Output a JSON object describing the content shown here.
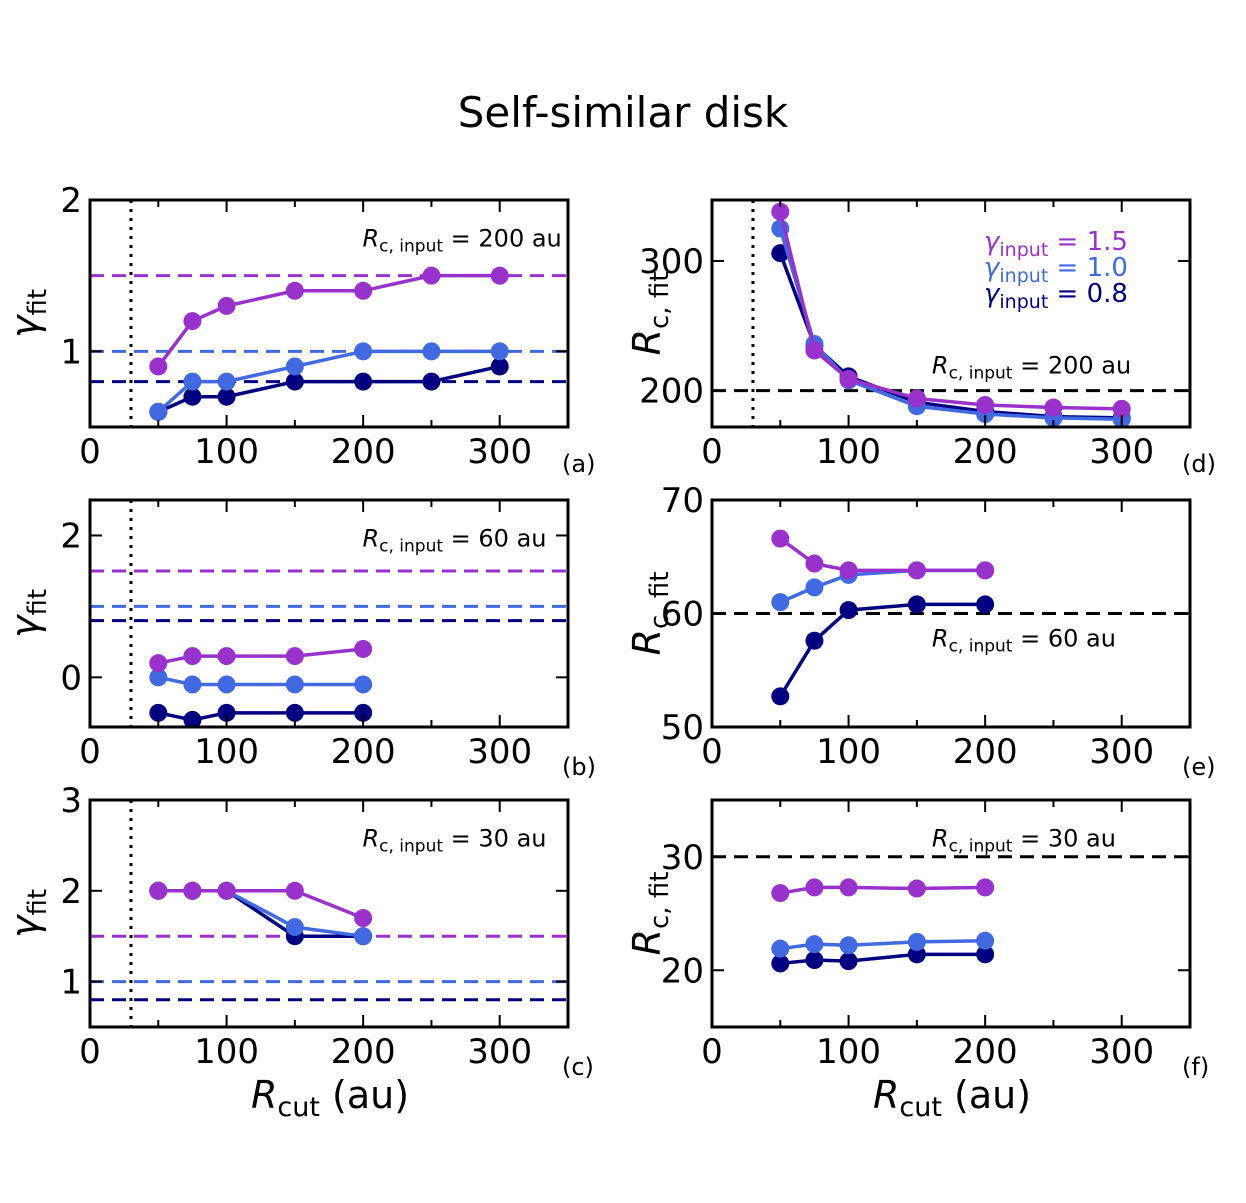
{
  "title": "Self-similar disk",
  "common_xlabel": {
    "main": "R",
    "sub": "cut",
    "unit": " (au)"
  },
  "legend": [
    {
      "gamma": "1.5",
      "color": "#9932CC"
    },
    {
      "gamma": "1.0",
      "color": "#4169E1"
    },
    {
      "gamma": "0.8",
      "color": "#000080"
    }
  ],
  "chart_data": [
    {
      "panel": "(a)",
      "type": "line",
      "xlim": [
        0,
        350
      ],
      "ylim": [
        0.5,
        2.0
      ],
      "xticks": [
        0,
        100,
        200,
        300
      ],
      "yticks": [
        1,
        2
      ],
      "ylabel": "gamma_fit",
      "annotation": {
        "label": "R",
        "sub": "c, input",
        "value": " = 200 au"
      },
      "hlines": [
        {
          "y": 1.5,
          "color": "#9932CC"
        },
        {
          "y": 1.0,
          "color": "#4169E1"
        },
        {
          "y": 0.8,
          "color": "#000080"
        }
      ],
      "vline": 30,
      "series": [
        {
          "name": "gamma_input = 1.5",
          "color": "#9932CC",
          "x": [
            50,
            75,
            100,
            150,
            200,
            250,
            300
          ],
          "y": [
            0.9,
            1.2,
            1.3,
            1.4,
            1.4,
            1.5,
            1.5
          ]
        },
        {
          "name": "gamma_input = 1.0",
          "color": "#4169E1",
          "x": [
            50,
            75,
            100,
            150,
            200,
            250,
            300
          ],
          "y": [
            0.6,
            0.8,
            0.8,
            0.9,
            1.0,
            1.0,
            1.0
          ]
        },
        {
          "name": "gamma_input = 0.8",
          "color": "#000080",
          "x": [
            50,
            75,
            100,
            150,
            200,
            250,
            300
          ],
          "y": [
            0.6,
            0.7,
            0.7,
            0.8,
            0.8,
            0.8,
            0.9
          ]
        }
      ]
    },
    {
      "panel": "(b)",
      "type": "line",
      "xlim": [
        0,
        350
      ],
      "ylim": [
        -0.7,
        2.5
      ],
      "xticks": [
        0,
        100,
        200,
        300
      ],
      "yticks": [
        0,
        2
      ],
      "ylabel": "gamma_fit",
      "annotation": {
        "label": "R",
        "sub": "c, input",
        "value": " = 60 au"
      },
      "hlines": [
        {
          "y": 1.5,
          "color": "#9932CC"
        },
        {
          "y": 1.0,
          "color": "#4169E1"
        },
        {
          "y": 0.8,
          "color": "#000080"
        }
      ],
      "vline": 30,
      "series": [
        {
          "name": "gamma_input = 1.5",
          "color": "#9932CC",
          "x": [
            50,
            75,
            100,
            150,
            200
          ],
          "y": [
            0.2,
            0.3,
            0.3,
            0.3,
            0.4
          ]
        },
        {
          "name": "gamma_input = 1.0",
          "color": "#4169E1",
          "x": [
            50,
            75,
            100,
            150,
            200
          ],
          "y": [
            0.0,
            -0.1,
            -0.1,
            -0.1,
            -0.1
          ]
        },
        {
          "name": "gamma_input = 0.8",
          "color": "#000080",
          "x": [
            50,
            75,
            100,
            150,
            200
          ],
          "y": [
            -0.5,
            -0.6,
            -0.5,
            -0.5,
            -0.5
          ]
        }
      ]
    },
    {
      "panel": "(c)",
      "type": "line",
      "xlim": [
        0,
        350
      ],
      "ylim": [
        0.5,
        3.0
      ],
      "xticks": [
        0,
        100,
        200,
        300
      ],
      "yticks": [
        1,
        2,
        3
      ],
      "ylabel": "gamma_fit",
      "annotation": {
        "label": "R",
        "sub": "c, input",
        "value": " = 30 au"
      },
      "hlines": [
        {
          "y": 1.5,
          "color": "#9932CC"
        },
        {
          "y": 1.0,
          "color": "#4169E1"
        },
        {
          "y": 0.8,
          "color": "#000080"
        }
      ],
      "vline": 30,
      "series": [
        {
          "name": "gamma_input = 1.5",
          "color": "#9932CC",
          "x": [
            50,
            75,
            100,
            150,
            200
          ],
          "y": [
            2.0,
            2.0,
            2.0,
            2.0,
            1.7
          ]
        },
        {
          "name": "gamma_input = 1.0",
          "color": "#4169E1",
          "x": [
            50,
            75,
            100,
            150,
            200
          ],
          "y": [
            2.0,
            2.0,
            2.0,
            1.6,
            1.5
          ]
        },
        {
          "name": "gamma_input = 0.8",
          "color": "#000080",
          "x": [
            50,
            75,
            100,
            150,
            200
          ],
          "y": [
            2.0,
            2.0,
            2.0,
            1.5,
            1.5
          ]
        }
      ]
    },
    {
      "panel": "(d)",
      "type": "line",
      "xlim": [
        0,
        350
      ],
      "ylim": [
        172,
        347
      ],
      "xticks": [
        0,
        100,
        200,
        300
      ],
      "yticks": [
        200,
        300
      ],
      "ylabel": "R_c,fit",
      "annotation": {
        "label": "R",
        "sub": "c, input",
        "value": " = 200 au"
      },
      "hlines": [
        {
          "y": 200,
          "color": "#000000"
        }
      ],
      "vline": 30,
      "series": [
        {
          "name": "gamma_input = 1.5",
          "color": "#9932CC",
          "x": [
            50,
            75,
            100,
            150,
            200,
            250,
            300
          ],
          "y": [
            338,
            231,
            209,
            194,
            189,
            187,
            186
          ]
        },
        {
          "name": "gamma_input = 1.0",
          "color": "#4169E1",
          "x": [
            50,
            75,
            100,
            150,
            200,
            250,
            300
          ],
          "y": [
            325,
            236,
            208,
            188,
            182,
            179,
            178
          ]
        },
        {
          "name": "gamma_input = 0.8",
          "color": "#000080",
          "x": [
            50,
            75,
            100,
            150,
            200,
            250,
            300
          ],
          "y": [
            306,
            235,
            211,
            191,
            184,
            180,
            179
          ]
        }
      ]
    },
    {
      "panel": "(e)",
      "type": "line",
      "xlim": [
        0,
        350
      ],
      "ylim": [
        50,
        70
      ],
      "xticks": [
        0,
        100,
        200,
        300
      ],
      "yticks": [
        50,
        60,
        70
      ],
      "ylabel": "R_c,fit",
      "annotation": {
        "label": "R",
        "sub": "c, input",
        "value": " = 60 au"
      },
      "hlines": [
        {
          "y": 60,
          "color": "#000000"
        }
      ],
      "vline": null,
      "series": [
        {
          "name": "gamma_input = 1.5",
          "color": "#9932CC",
          "x": [
            50,
            75,
            100,
            150,
            200
          ],
          "y": [
            66.6,
            64.4,
            63.8,
            63.8,
            63.8
          ]
        },
        {
          "name": "gamma_input = 1.0",
          "color": "#4169E1",
          "x": [
            50,
            75,
            100,
            150,
            200
          ],
          "y": [
            61.0,
            62.3,
            63.4,
            63.8,
            63.8
          ]
        },
        {
          "name": "gamma_input = 0.8",
          "color": "#000080",
          "x": [
            50,
            75,
            100,
            150,
            200
          ],
          "y": [
            52.7,
            57.6,
            60.3,
            60.8,
            60.8
          ]
        }
      ]
    },
    {
      "panel": "(f)",
      "type": "line",
      "xlim": [
        0,
        350
      ],
      "ylim": [
        15,
        35
      ],
      "xticks": [
        0,
        100,
        200,
        300
      ],
      "yticks": [
        20,
        30
      ],
      "ylabel": "R_c,fit",
      "annotation": {
        "label": "R",
        "sub": "c, input",
        "value": " = 30 au"
      },
      "hlines": [
        {
          "y": 30,
          "color": "#000000"
        }
      ],
      "vline": null,
      "series": [
        {
          "name": "gamma_input = 1.5",
          "color": "#9932CC",
          "x": [
            50,
            75,
            100,
            150,
            200
          ],
          "y": [
            26.8,
            27.3,
            27.3,
            27.2,
            27.3
          ]
        },
        {
          "name": "gamma_input = 1.0",
          "color": "#4169E1",
          "x": [
            50,
            75,
            100,
            150,
            200
          ],
          "y": [
            21.9,
            22.3,
            22.2,
            22.5,
            22.6
          ]
        },
        {
          "name": "gamma_input = 0.8",
          "color": "#000080",
          "x": [
            50,
            75,
            100,
            150,
            200
          ],
          "y": [
            20.6,
            20.9,
            20.8,
            21.4,
            21.4
          ]
        }
      ]
    }
  ]
}
